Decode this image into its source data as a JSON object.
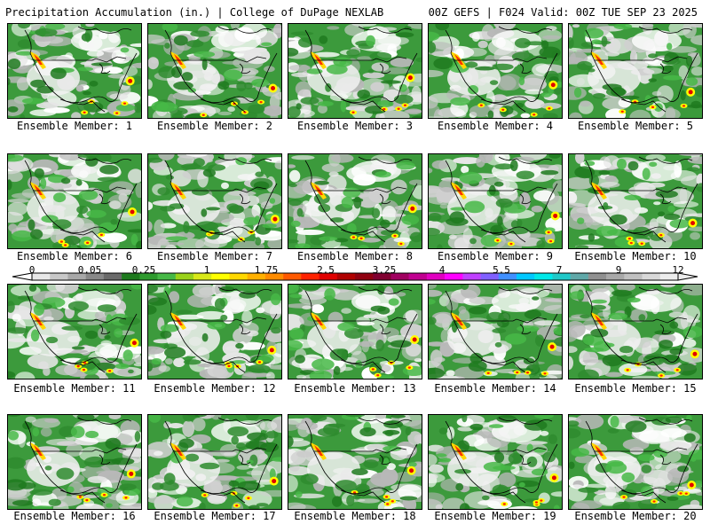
{
  "header": {
    "title": "Precipitation Accumulation (in.) | College of DuPage NEXLAB",
    "run_info": "00Z GEFS | F024 Valid: 00Z TUE SEP 23 2025"
  },
  "panels": [
    {
      "label": "Ensemble Member: 1"
    },
    {
      "label": "Ensemble Member: 2"
    },
    {
      "label": "Ensemble Member: 3"
    },
    {
      "label": "Ensemble Member: 4"
    },
    {
      "label": "Ensemble Member: 5"
    },
    {
      "label": "Ensemble Member: 6"
    },
    {
      "label": "Ensemble Member: 7"
    },
    {
      "label": "Ensemble Member: 8"
    },
    {
      "label": "Ensemble Member: 9"
    },
    {
      "label": "Ensemble Member: 10"
    },
    {
      "label": "Ensemble Member: 11"
    },
    {
      "label": "Ensemble Member: 12"
    },
    {
      "label": "Ensemble Member: 13"
    },
    {
      "label": "Ensemble Member: 14"
    },
    {
      "label": "Ensemble Member: 15"
    },
    {
      "label": "Ensemble Member: 16"
    },
    {
      "label": "Ensemble Member: 17"
    },
    {
      "label": "Ensemble Member: 18"
    },
    {
      "label": "Ensemble Member: 19"
    },
    {
      "label": "Ensemble Member: 20"
    }
  ],
  "color_scale": {
    "tick_labels": [
      "0",
      "0.05",
      "0.25",
      "1",
      "1.75",
      "2.5",
      "3.25",
      "4",
      "5.5",
      "7",
      "9",
      "12"
    ],
    "colors": [
      "#e8e8e8",
      "#c8c8c8",
      "#a8a8a8",
      "#888888",
      "#6a6a6a",
      "#1e7a1e",
      "#2e9a2e",
      "#46b846",
      "#9ad21a",
      "#d8e818",
      "#ffff00",
      "#ffd800",
      "#ffb000",
      "#ff8c00",
      "#ff5a00",
      "#ff2200",
      "#e00000",
      "#b00000",
      "#900010",
      "#800030",
      "#a00060",
      "#c00090",
      "#e000c0",
      "#ff00ff",
      "#c040ff",
      "#8060ff",
      "#4090ff",
      "#00c8ff",
      "#00e8e8",
      "#20c8c8",
      "#60a8a8",
      "#909090",
      "#a8a8a8",
      "#c0c0c0",
      "#d8d8d8",
      "#ececec"
    ]
  }
}
